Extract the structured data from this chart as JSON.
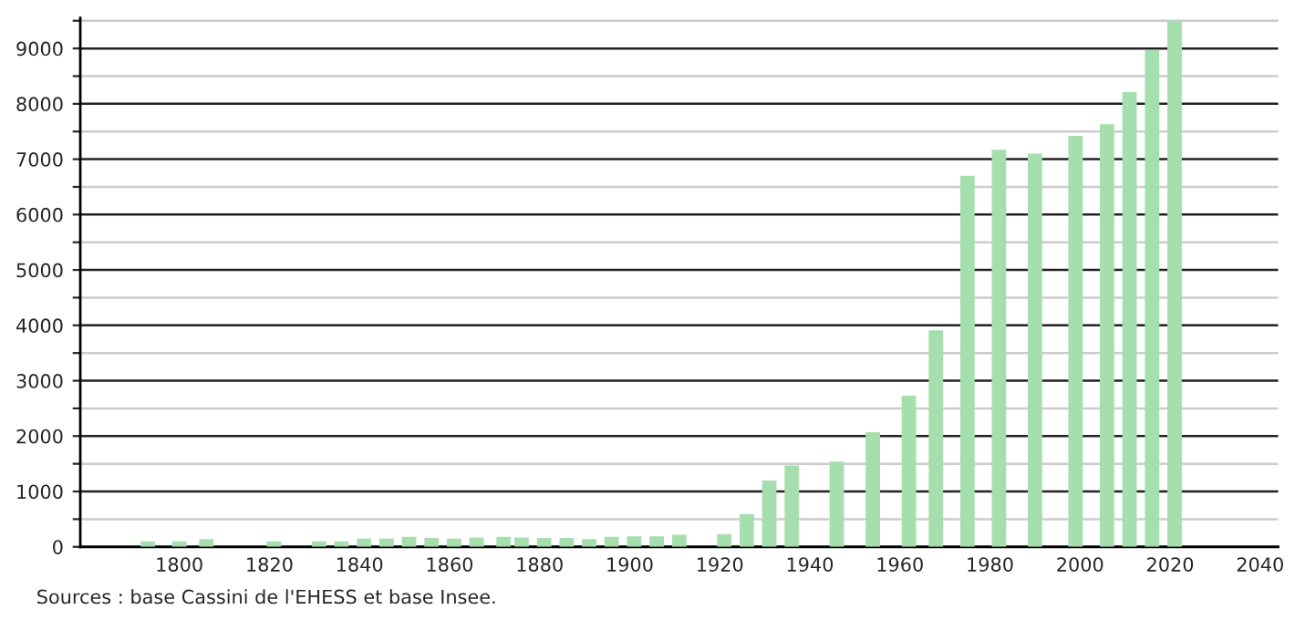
{
  "chart_data": {
    "type": "bar",
    "x": [
      1793,
      1800,
      1806,
      1821,
      1831,
      1836,
      1841,
      1846,
      1851,
      1856,
      1861,
      1866,
      1872,
      1876,
      1881,
      1886,
      1891,
      1896,
      1901,
      1906,
      1911,
      1921,
      1926,
      1931,
      1936,
      1946,
      1954,
      1962,
      1968,
      1975,
      1982,
      1990,
      1999,
      2006,
      2011,
      2016,
      2021
    ],
    "values": [
      100,
      100,
      140,
      100,
      100,
      100,
      150,
      150,
      180,
      160,
      150,
      170,
      180,
      170,
      160,
      160,
      140,
      180,
      190,
      190,
      220,
      230,
      590,
      1200,
      1470,
      1540,
      2070,
      2730,
      3910,
      6700,
      7170,
      7100,
      7420,
      7630,
      8210,
      8970,
      9500
    ],
    "color": "#a6dfae",
    "xlim": [
      1778,
      2044
    ],
    "xticks": [
      1800,
      1820,
      1840,
      1860,
      1880,
      1900,
      1920,
      1940,
      1960,
      1980,
      2000,
      2020,
      2040
    ],
    "ylim": [
      0,
      9550
    ],
    "yticks": [
      0,
      {
        "value": 500,
        "label": null
      },
      1000,
      {
        "value": 1500,
        "label": null
      },
      2000,
      {
        "value": 2500,
        "label": null
      },
      3000,
      {
        "value": 3500,
        "label": null
      },
      4000,
      {
        "value": 4500,
        "label": null
      },
      5000,
      {
        "value": 5500,
        "label": null
      },
      6000,
      {
        "value": 6500,
        "label": null
      },
      7000,
      {
        "value": 7500,
        "label": null
      },
      8000,
      {
        "value": 8500,
        "label": null
      },
      9000,
      {
        "value": 9500,
        "label": null
      }
    ],
    "grid": "y",
    "annotations": [
      "Sources : base Cassini de l'EHESS et base Insee."
    ]
  }
}
